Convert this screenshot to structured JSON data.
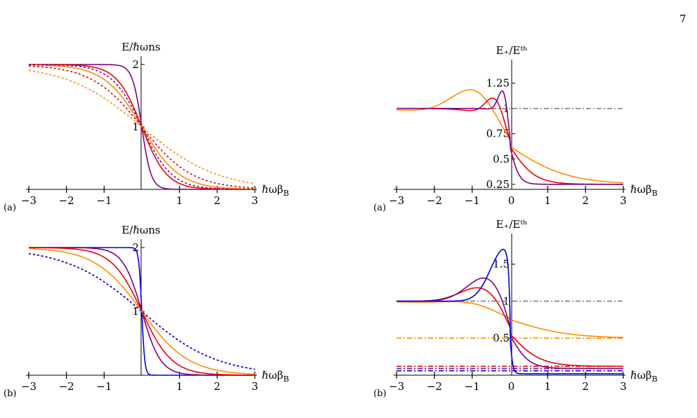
{
  "page_number": "7",
  "colors": {
    "orange": "#ff8c00",
    "red": "#e8000b",
    "purple": "#7f007f",
    "blue": "#0000e6",
    "gray": "#808080"
  },
  "chart_data": [
    {
      "id": "left-a",
      "type": "line",
      "panel_tag": "(a)",
      "ylabel": "E/ℏωns",
      "xlabel": "ℏωβ_B",
      "xlim": [
        -3,
        3
      ],
      "ylim": [
        0,
        2
      ],
      "x_ticks": [
        "−3",
        "−2",
        "−1",
        "1",
        "2",
        "3"
      ],
      "y_ticks": [
        "1",
        "2"
      ],
      "series": [
        {
          "color": "purple",
          "style": "solid",
          "formula": "sigmoid",
          "k": 8.0
        },
        {
          "color": "red",
          "style": "solid",
          "formula": "sigmoid",
          "k": 3.0
        },
        {
          "color": "orange",
          "style": "solid",
          "formula": "sigmoid",
          "k": 2.0
        },
        {
          "color": "purple",
          "style": "dotted",
          "formula": "sigmoid",
          "k": 2.5
        },
        {
          "color": "red",
          "style": "dotted",
          "formula": "sigmoid",
          "k": 1.5
        },
        {
          "color": "orange",
          "style": "dotted",
          "formula": "sigmoid",
          "k": 1.0
        }
      ]
    },
    {
      "id": "left-b",
      "type": "line",
      "panel_tag": "(b)",
      "ylabel": "E/ℏωns",
      "xlabel": "ℏωβ_B",
      "xlim": [
        -3,
        3
      ],
      "ylim": [
        0,
        2
      ],
      "x_ticks": [
        "−3",
        "−2",
        "−1",
        "1",
        "2",
        "3"
      ],
      "y_ticks": [
        "1",
        "2"
      ],
      "series": [
        {
          "color": "blue",
          "style": "solid",
          "formula": "sigmoid",
          "k": 25.0
        },
        {
          "color": "purple",
          "style": "solid",
          "formula": "sigmoid",
          "k": 4.0
        },
        {
          "color": "red",
          "style": "solid",
          "formula": "sigmoid",
          "k": 2.5
        },
        {
          "color": "orange",
          "style": "solid",
          "formula": "sigmoid",
          "k": 1.6
        },
        {
          "color": "red",
          "style": "dotted",
          "formula": "sigmoid",
          "k": 1.0
        },
        {
          "color": "blue",
          "style": "dotted",
          "formula": "sigmoid",
          "k": 1.0
        }
      ]
    },
    {
      "id": "right-a",
      "type": "line",
      "panel_tag": "(a)",
      "ylabel": "E₊/Eᵗʰ",
      "xlabel": "ℏωβ_B",
      "xlim": [
        -3,
        3
      ],
      "ylim": [
        0.2,
        1.4
      ],
      "x_ticks": [
        "−3",
        "−2",
        "−1",
        "0",
        "1",
        "2",
        "3"
      ],
      "y_ticks": [
        "0.25",
        "0.5",
        "0.75",
        "1",
        "1.25"
      ],
      "series": [
        {
          "color": "gray",
          "style": "dashdot",
          "formula": "const",
          "value": 1.0
        },
        {
          "color": "orange",
          "style": "solid",
          "formula": "peak",
          "low": 0.25,
          "bump": 0.36,
          "peak_x": -0.85,
          "w": 0.9,
          "k": 1.3
        },
        {
          "color": "red",
          "style": "solid",
          "formula": "peak",
          "low": 0.25,
          "bump": 0.28,
          "peak_x": -0.35,
          "w": 0.38,
          "k": 3.0
        },
        {
          "color": "purple",
          "style": "solid",
          "formula": "peak",
          "low": 0.25,
          "bump": 0.32,
          "peak_x": -0.15,
          "w": 0.2,
          "k": 8.0
        }
      ]
    },
    {
      "id": "right-b",
      "type": "line",
      "panel_tag": "(b)",
      "ylabel": "E₊/Eᵗʰ",
      "xlabel": "ℏωβ_B",
      "xlim": [
        -3,
        3
      ],
      "ylim": [
        0,
        1.8
      ],
      "x_ticks": [
        "−3",
        "−2",
        "−1",
        "0",
        "1",
        "2",
        "3"
      ],
      "y_ticks": [
        "0.5",
        "1",
        "1.5"
      ],
      "series": [
        {
          "color": "gray",
          "style": "dashdot",
          "formula": "const",
          "value": 1.0
        },
        {
          "color": "orange",
          "style": "dashdot",
          "formula": "const",
          "value": 0.5
        },
        {
          "color": "red",
          "style": "dashdot",
          "formula": "const",
          "value": 0.12
        },
        {
          "color": "purple",
          "style": "dashdot",
          "formula": "const",
          "value": 0.09
        },
        {
          "color": "blue",
          "style": "dashdot",
          "formula": "const",
          "value": 0.06
        },
        {
          "color": "orange",
          "style": "solid",
          "formula": "peak",
          "low": 0.5,
          "bump": 0.08,
          "peak_x": -0.9,
          "w": 1.0,
          "k": 1.3
        },
        {
          "color": "red",
          "style": "solid",
          "formula": "peak",
          "low": 0.12,
          "bump": 0.3,
          "peak_x": -0.6,
          "w": 0.85,
          "k": 2.5
        },
        {
          "color": "purple",
          "style": "solid",
          "formula": "peak",
          "low": 0.09,
          "bump": 0.38,
          "peak_x": -0.55,
          "w": 0.75,
          "k": 4.0
        },
        {
          "color": "blue",
          "style": "solid",
          "formula": "peak",
          "low": 0.02,
          "bump": 0.72,
          "peak_x": -0.12,
          "w": 0.55,
          "k": 25.0
        }
      ]
    }
  ]
}
